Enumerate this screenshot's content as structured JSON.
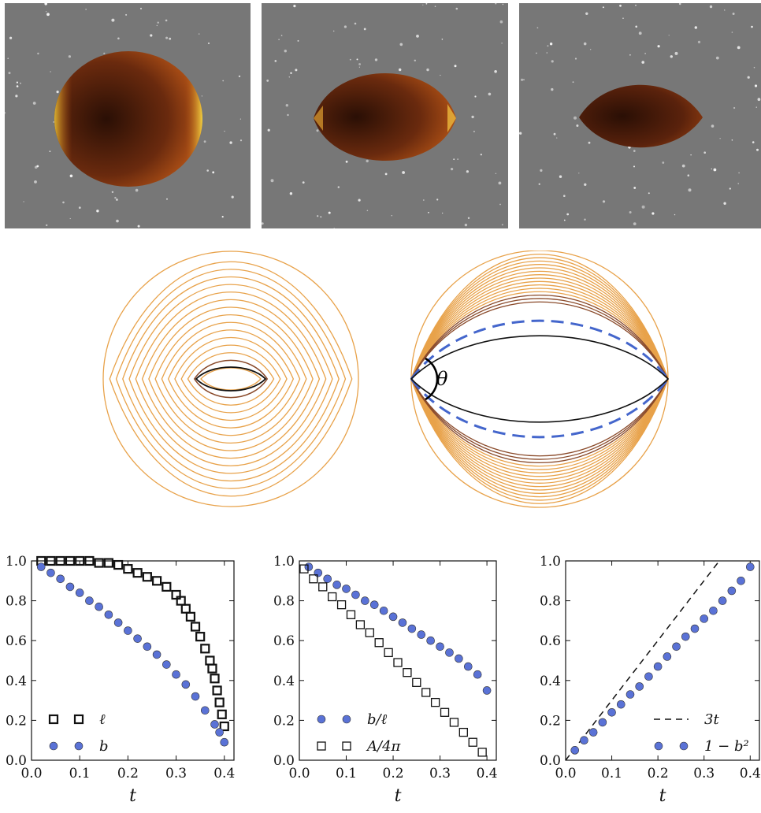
{
  "photos": [
    {
      "label": "photo-1"
    },
    {
      "label": "photo-2"
    },
    {
      "label": "photo-3"
    }
  ],
  "diagram": {
    "contour_count_left": 16,
    "contour_count_right": 16,
    "angle_label": "θ",
    "colors": {
      "contour": "#e8a24a",
      "inner": "#8a4a2a",
      "innermost": "#111111",
      "dashed": "#4466cc"
    }
  },
  "chart_data": [
    {
      "type": "scatter",
      "xlabel": "t",
      "ylabel": "",
      "xlim": [
        0.0,
        0.42
      ],
      "ylim": [
        0.0,
        1.0
      ],
      "xticks": [
        "0.0",
        "0.1",
        "0.2",
        "0.3",
        "0.4"
      ],
      "yticks": [
        "0.0",
        "0.2",
        "0.4",
        "0.6",
        "0.8",
        "1.0"
      ],
      "legend_position": "bottom-left",
      "series": [
        {
          "name": "ℓ",
          "marker": "square-open",
          "color": "#111111",
          "x": [
            0.02,
            0.04,
            0.06,
            0.08,
            0.1,
            0.12,
            0.14,
            0.16,
            0.18,
            0.2,
            0.22,
            0.24,
            0.26,
            0.28,
            0.3,
            0.31,
            0.32,
            0.33,
            0.34,
            0.35,
            0.36,
            0.37,
            0.375,
            0.38,
            0.385,
            0.39,
            0.395,
            0.4
          ],
          "y": [
            1.0,
            1.0,
            1.0,
            1.0,
            1.0,
            1.0,
            0.99,
            0.99,
            0.98,
            0.96,
            0.94,
            0.92,
            0.9,
            0.87,
            0.83,
            0.8,
            0.76,
            0.72,
            0.67,
            0.62,
            0.56,
            0.5,
            0.46,
            0.41,
            0.35,
            0.29,
            0.23,
            0.17
          ]
        },
        {
          "name": "b",
          "marker": "circle",
          "color": "#5a72d6",
          "x": [
            0.02,
            0.04,
            0.06,
            0.08,
            0.1,
            0.12,
            0.14,
            0.16,
            0.18,
            0.2,
            0.22,
            0.24,
            0.26,
            0.28,
            0.3,
            0.32,
            0.34,
            0.36,
            0.38,
            0.39,
            0.4
          ],
          "y": [
            0.97,
            0.94,
            0.91,
            0.87,
            0.84,
            0.8,
            0.77,
            0.73,
            0.69,
            0.65,
            0.61,
            0.57,
            0.53,
            0.48,
            0.43,
            0.38,
            0.32,
            0.25,
            0.18,
            0.14,
            0.09
          ]
        }
      ]
    },
    {
      "type": "scatter",
      "xlabel": "t",
      "ylabel": "",
      "xlim": [
        0.0,
        0.42
      ],
      "ylim": [
        0.0,
        1.0
      ],
      "xticks": [
        "0.0",
        "0.1",
        "0.2",
        "0.3",
        "0.4"
      ],
      "yticks": [
        "0.0",
        "0.2",
        "0.4",
        "0.6",
        "0.8",
        "1.0"
      ],
      "legend_position": "bottom-left",
      "series": [
        {
          "name": "b/ℓ",
          "marker": "circle",
          "color": "#5a72d6",
          "x": [
            0.02,
            0.04,
            0.06,
            0.08,
            0.1,
            0.12,
            0.14,
            0.16,
            0.18,
            0.2,
            0.22,
            0.24,
            0.26,
            0.28,
            0.3,
            0.32,
            0.34,
            0.36,
            0.38,
            0.4
          ],
          "y": [
            0.97,
            0.94,
            0.91,
            0.88,
            0.86,
            0.83,
            0.8,
            0.78,
            0.75,
            0.72,
            0.69,
            0.66,
            0.63,
            0.6,
            0.57,
            0.54,
            0.51,
            0.47,
            0.43,
            0.35
          ]
        },
        {
          "name": "A/4π",
          "marker": "square-open",
          "color": "#111111",
          "x": [
            0.01,
            0.03,
            0.05,
            0.07,
            0.09,
            0.11,
            0.13,
            0.15,
            0.17,
            0.19,
            0.21,
            0.23,
            0.25,
            0.27,
            0.29,
            0.31,
            0.33,
            0.35,
            0.37,
            0.39
          ],
          "y": [
            0.96,
            0.91,
            0.87,
            0.82,
            0.78,
            0.73,
            0.68,
            0.64,
            0.59,
            0.54,
            0.49,
            0.44,
            0.39,
            0.34,
            0.29,
            0.24,
            0.19,
            0.14,
            0.09,
            0.04
          ]
        }
      ]
    },
    {
      "type": "scatter",
      "xlabel": "t",
      "ylabel": "",
      "xlim": [
        0.0,
        0.42
      ],
      "ylim": [
        0.0,
        1.0
      ],
      "xticks": [
        "0.0",
        "0.1",
        "0.2",
        "0.3",
        "0.4"
      ],
      "yticks": [
        "0.0",
        "0.2",
        "0.4",
        "0.6",
        "0.8",
        "1.0"
      ],
      "legend_position": "bottom-right",
      "series": [
        {
          "name": "3t",
          "marker": "dashed-line",
          "color": "#111111",
          "x": [
            0.0,
            0.333
          ],
          "y": [
            0.0,
            1.0
          ]
        },
        {
          "name": "1 − b²",
          "marker": "circle",
          "color": "#5a72d6",
          "x": [
            0.02,
            0.04,
            0.06,
            0.08,
            0.1,
            0.12,
            0.14,
            0.16,
            0.18,
            0.2,
            0.22,
            0.24,
            0.26,
            0.28,
            0.3,
            0.32,
            0.34,
            0.36,
            0.38,
            0.4
          ],
          "y": [
            0.05,
            0.1,
            0.14,
            0.19,
            0.24,
            0.28,
            0.33,
            0.37,
            0.42,
            0.47,
            0.52,
            0.57,
            0.62,
            0.66,
            0.71,
            0.75,
            0.8,
            0.85,
            0.9,
            0.97
          ]
        }
      ]
    }
  ]
}
